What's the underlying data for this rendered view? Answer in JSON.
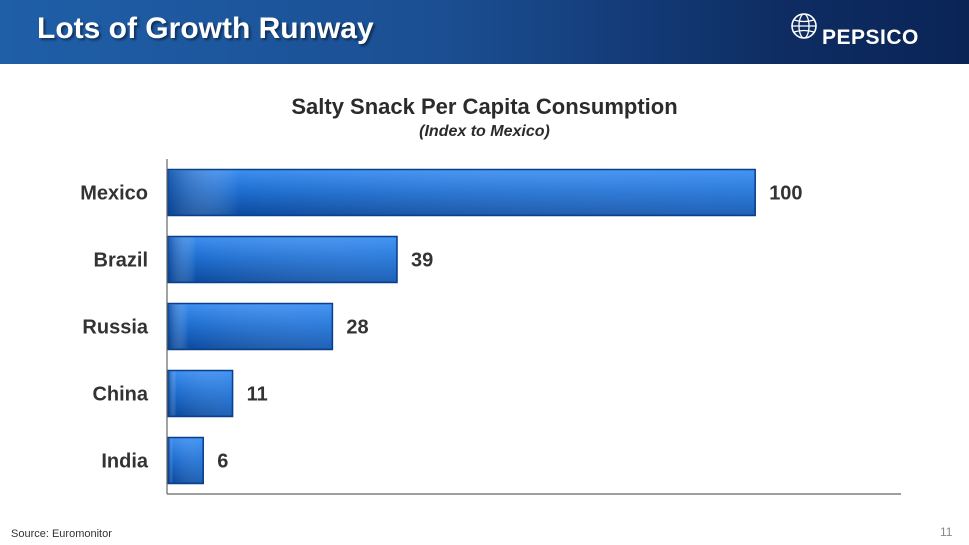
{
  "header": {
    "title": "Lots of Growth Runway",
    "logo_text": "PEPSICO",
    "logo_icon": "globe-icon"
  },
  "chart_data": {
    "type": "bar",
    "orientation": "horizontal",
    "title": "Salty Snack Per Capita Consumption",
    "subtitle": "(Index to Mexico)",
    "categories": [
      "Mexico",
      "Brazil",
      "Russia",
      "China",
      "India"
    ],
    "values": [
      100,
      39,
      28,
      11,
      6
    ],
    "value_labels": [
      "100",
      "39",
      "28",
      "11",
      "6"
    ],
    "xlim": [
      0,
      125
    ],
    "grid": false,
    "legend": "none",
    "bar_color": "#1f6fd1"
  },
  "footer": {
    "source": "Source: Euromonitor",
    "page_number": "11"
  }
}
